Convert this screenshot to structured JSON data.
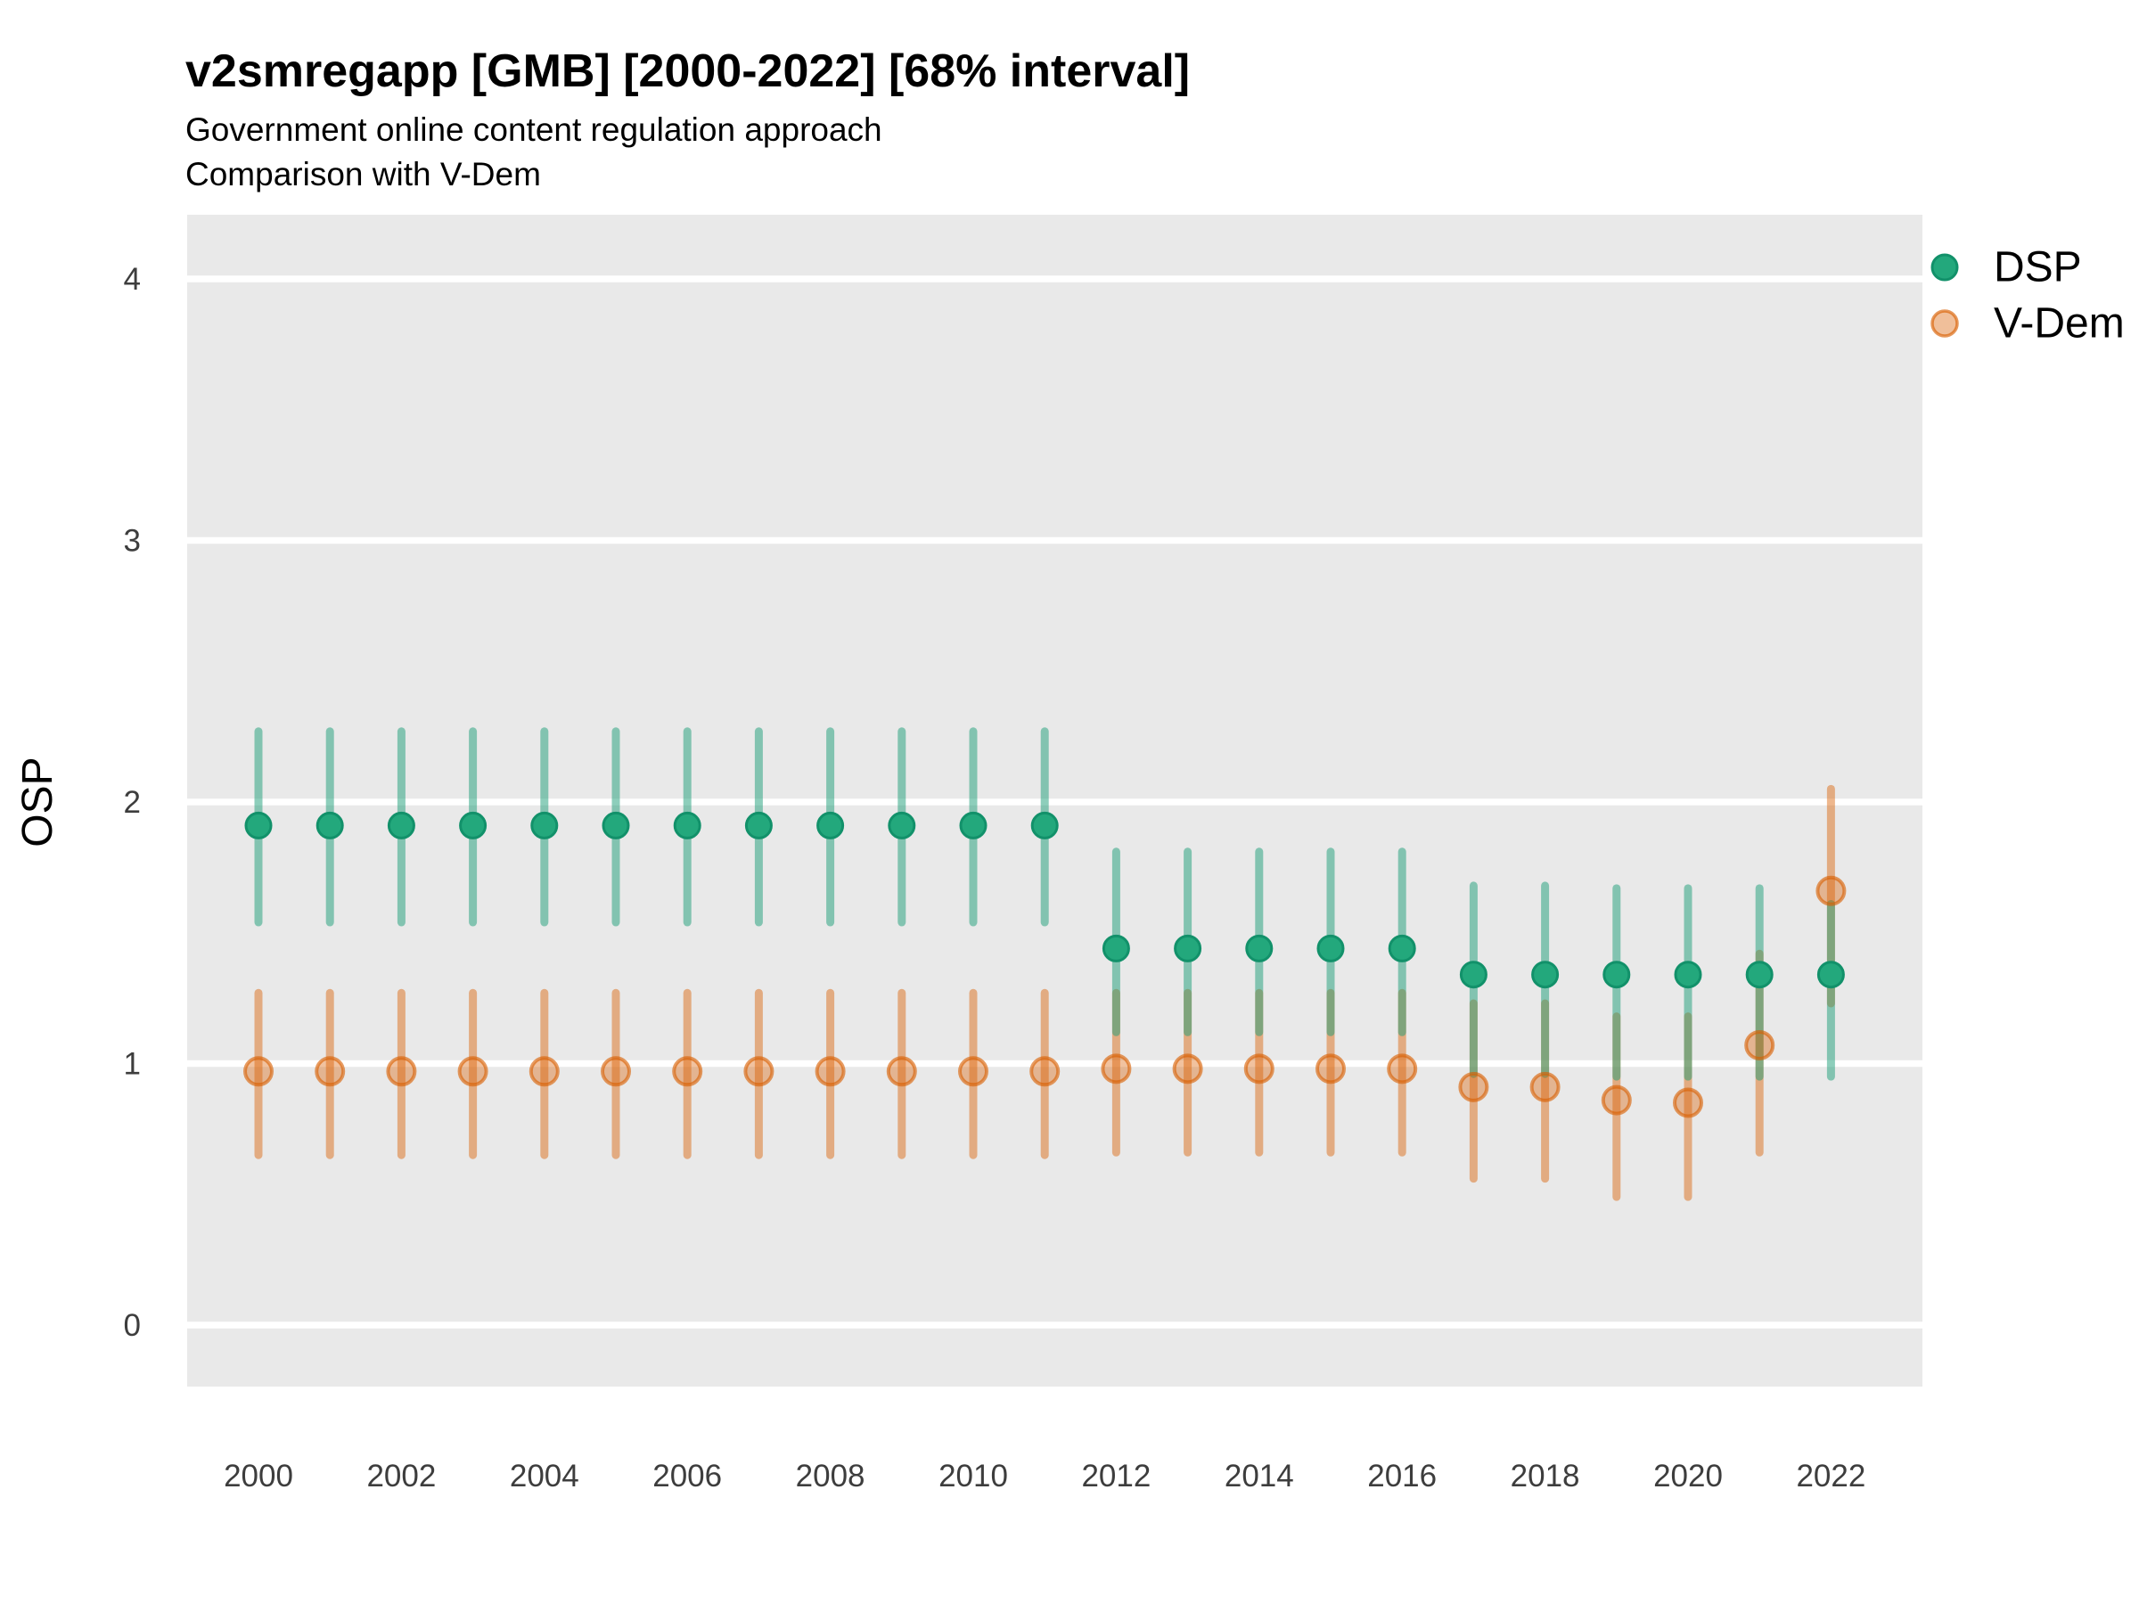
{
  "header": {
    "title": "v2smregapp [GMB] [2000-2022] [68% interval]",
    "subtitle": "Government online content regulation approach",
    "comparison_note": "Comparison with V-Dem"
  },
  "axes": {
    "y_label": "OSP",
    "y_ticks": [
      0,
      1,
      2,
      3,
      4
    ],
    "x_tick_years": [
      2000,
      2002,
      2004,
      2006,
      2008,
      2010,
      2012,
      2014,
      2016,
      2018,
      2020,
      2022
    ]
  },
  "legend": {
    "items": [
      {
        "label": "DSP",
        "color": "#1b9e77"
      },
      {
        "label": "V-Dem",
        "color": "#d95f02"
      }
    ]
  },
  "colors": {
    "panel_bg": "#e9e9e9",
    "gridline": "#ffffff",
    "tick_label": "#3d3d3d",
    "text": "#000000",
    "dsp_green": "#1b9e77",
    "vdem_orange": "#d95f02"
  },
  "chart_data": {
    "type": "scatter",
    "subtype": "pointrange (point estimate with 68% interval bars)",
    "title": "v2smregapp [GMB] [2000-2022] [68% interval]",
    "subtitle": "Government online content regulation approach",
    "note": "Comparison with V-Dem",
    "xlabel": "",
    "ylabel": "OSP",
    "ylim": [
      0,
      4
    ],
    "x_range": [
      2000,
      2022
    ],
    "grid": "horizontal-major-only",
    "legend_position": "right-top",
    "x": [
      2000,
      2001,
      2002,
      2003,
      2004,
      2005,
      2006,
      2007,
      2008,
      2009,
      2010,
      2011,
      2012,
      2013,
      2014,
      2015,
      2016,
      2017,
      2018,
      2019,
      2020,
      2021,
      2022
    ],
    "series": [
      {
        "name": "DSP",
        "color": "#1b9e77",
        "values": [
          1.91,
          1.91,
          1.91,
          1.91,
          1.91,
          1.91,
          1.91,
          1.91,
          1.91,
          1.91,
          1.91,
          1.91,
          1.44,
          1.44,
          1.44,
          1.44,
          1.44,
          1.34,
          1.34,
          1.34,
          1.34,
          1.34,
          1.34
        ],
        "lo": [
          1.54,
          1.54,
          1.54,
          1.54,
          1.54,
          1.54,
          1.54,
          1.54,
          1.54,
          1.54,
          1.54,
          1.54,
          1.12,
          1.12,
          1.12,
          1.12,
          1.12,
          0.96,
          0.96,
          0.95,
          0.95,
          0.95,
          0.95
        ],
        "hi": [
          2.27,
          2.27,
          2.27,
          2.27,
          2.27,
          2.27,
          2.27,
          2.27,
          2.27,
          2.27,
          2.27,
          2.27,
          1.81,
          1.81,
          1.81,
          1.81,
          1.81,
          1.68,
          1.68,
          1.67,
          1.67,
          1.67,
          1.61
        ]
      },
      {
        "name": "V-Dem",
        "color": "#d95f02",
        "values": [
          0.97,
          0.97,
          0.97,
          0.97,
          0.97,
          0.97,
          0.97,
          0.97,
          0.97,
          0.97,
          0.97,
          0.97,
          0.98,
          0.98,
          0.98,
          0.98,
          0.98,
          0.91,
          0.91,
          0.86,
          0.85,
          1.07,
          1.66
        ],
        "lo": [
          0.65,
          0.65,
          0.65,
          0.65,
          0.65,
          0.65,
          0.65,
          0.65,
          0.65,
          0.65,
          0.65,
          0.65,
          0.66,
          0.66,
          0.66,
          0.66,
          0.66,
          0.56,
          0.56,
          0.49,
          0.49,
          0.66,
          1.23
        ],
        "hi": [
          1.27,
          1.27,
          1.27,
          1.27,
          1.27,
          1.27,
          1.27,
          1.27,
          1.27,
          1.27,
          1.27,
          1.27,
          1.27,
          1.27,
          1.27,
          1.27,
          1.27,
          1.23,
          1.23,
          1.18,
          1.18,
          1.42,
          2.05
        ]
      }
    ]
  }
}
